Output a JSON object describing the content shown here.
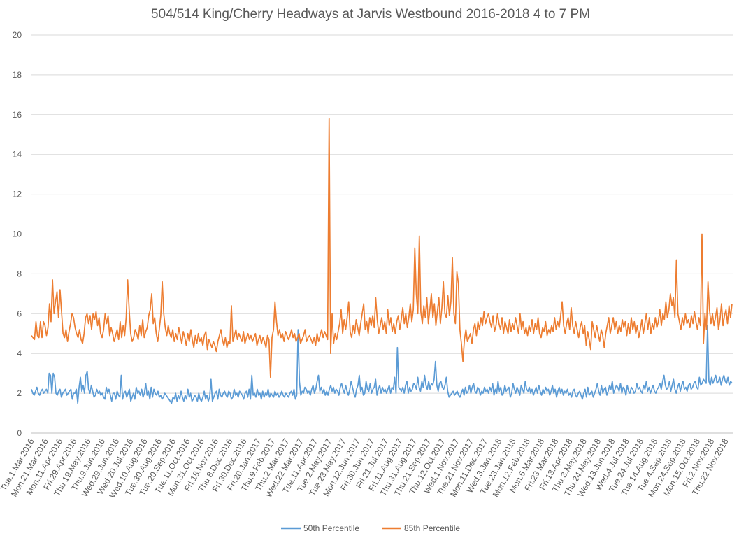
{
  "chart_data": {
    "type": "line",
    "title": "504/514 King/Cherry Headways at Jarvis Westbound 2016-2018 4 to 7 PM",
    "xlabel": "",
    "ylabel": "",
    "ylim": [
      0,
      20
    ],
    "yticks": [
      0,
      2,
      4,
      6,
      8,
      10,
      12,
      14,
      16,
      18,
      20
    ],
    "grid": true,
    "legend_position": "bottom",
    "x_tick_labels": [
      "Tue.1.Mar.2016",
      "Mon.21.Mar.2016",
      "Mon.11.Apr.2016",
      "Fri.29.Apr.2016",
      "Thu.19.May.2016",
      "Thu.9.Jun.2016",
      "Wed.29.Jun.2016",
      "Wed.20.Jul.2016",
      "Wed.10.Aug.2016",
      "Tue.30.Aug.2016",
      "Tue.20.Sep.2016",
      "Tue.11.Oct.2016",
      "Mon.31.Oct.2016",
      "Fri.18.Nov.2016",
      "Thu.8.Dec.2016",
      "Fri.30.Dec.2016",
      "Fri.20.Jan.2017",
      "Thu.9.Feb.2017",
      "Thu.2.Mar.2017",
      "Wed.22.Mar.2017",
      "Tue.11.Apr.2017",
      "Tue.2.May.2017",
      "Tue.23.May.2017",
      "Mon.12.Jun.2017",
      "Fri.30.Jun.2017",
      "Fri.21.Jul.2017",
      "Fri.11.Aug.2017",
      "Thu.31.Aug.2017",
      "Thu.21.Sep.2017",
      "Thu.12.Oct.2017",
      "Wed.1.Nov.2017",
      "Tue.21.Nov.2017",
      "Mon.11.Dec.2017",
      "Wed.3.Jan.2018",
      "Tue.23.Jan.2018",
      "Mon.12.Feb.2018",
      "Mon.5.Mar.2018",
      "Fri.23.Mar.2018",
      "Fri.13.Apr.2018",
      "Thu.3.May.2018",
      "Thu.24.May.2018",
      "Wed.13.Jun.2018",
      "Wed.4.Jul.2018",
      "Tue.24.Jul.2018",
      "Tue.14.Aug.2018",
      "Tue.4.Sep.2018",
      "Mon.24.Sep.2018",
      "Mon.15.Oct.2018",
      "Fri.2.Nov.2018",
      "Thu.22.Nov.2018"
    ],
    "series": [
      {
        "name": "50th Percentile",
        "color": "#5b9bd5",
        "values": [
          2.2,
          2.0,
          1.9,
          2.1,
          2.3,
          2.0,
          1.9,
          2.1,
          2.2,
          2.0,
          2.1,
          2.2,
          2.0,
          3.0,
          2.9,
          2.0,
          3.0,
          2.8,
          2.0,
          1.9,
          2.1,
          2.2,
          1.8,
          2.0,
          2.1,
          2.2,
          1.9,
          2.0,
          2.1,
          2.2,
          1.7,
          2.0,
          2.0,
          2.2,
          1.5,
          2.3,
          2.8,
          2.1,
          2.4,
          2.0,
          2.9,
          3.1,
          2.2,
          2.0,
          2.4,
          2.1,
          1.8,
          1.9,
          2.2,
          2.0,
          2.1,
          1.9,
          2.0,
          1.8,
          1.7,
          2.3,
          2.0,
          2.2,
          1.9,
          1.6,
          2.0,
          2.0,
          1.7,
          2.1,
          1.9,
          1.8,
          2.9,
          1.7,
          2.0,
          2.1,
          1.8,
          2.0,
          2.2,
          1.6,
          1.8,
          2.0,
          1.7,
          2.3,
          2.0,
          2.1,
          1.9,
          2.2,
          1.8,
          2.0,
          2.5,
          1.9,
          2.1,
          1.7,
          2.3,
          1.8,
          2.2,
          2.0,
          1.9,
          2.1,
          1.8,
          1.9,
          1.7,
          1.8,
          2.0,
          1.9,
          1.8,
          1.7,
          1.6,
          1.5,
          1.8,
          1.7,
          2.0,
          1.6,
          1.9,
          1.7,
          2.1,
          1.8,
          1.6,
          1.9,
          1.7,
          2.2,
          1.8,
          2.0,
          1.6,
          1.7,
          1.9,
          1.8,
          1.6,
          2.0,
          1.7,
          1.6,
          1.8,
          2.1,
          1.7,
          1.9,
          1.6,
          1.8,
          2.7,
          1.6,
          1.8,
          2.0,
          2.1,
          1.7,
          2.2,
          1.9,
          1.8,
          2.0,
          2.1,
          1.9,
          1.8,
          2.1,
          2.0,
          1.7,
          1.8,
          2.2,
          1.9,
          2.0,
          1.8,
          2.1,
          2.0,
          1.9,
          1.7,
          2.0,
          2.1,
          1.8,
          2.2,
          1.7,
          2.9,
          1.9,
          2.0,
          1.8,
          2.2,
          1.9,
          2.0,
          1.7,
          2.1,
          1.8,
          2.0,
          1.9,
          2.2,
          1.8,
          2.0,
          1.9,
          1.8,
          2.1,
          1.9,
          2.0,
          1.8,
          1.9,
          2.1,
          1.9,
          1.8,
          2.0,
          1.9,
          1.8,
          2.0,
          2.1,
          1.9,
          2.2,
          1.7,
          1.9,
          5.2,
          2.6,
          1.9,
          2.1,
          2.0,
          2.3,
          2.2,
          2.0,
          2.1,
          1.9,
          2.2,
          2.4,
          2.0,
          2.2,
          2.6,
          2.9,
          2.1,
          2.3,
          2.0,
          2.2,
          1.9,
          2.1,
          1.9,
          2.2,
          2.4,
          2.1,
          2.3,
          2.0,
          2.2,
          2.1,
          1.9,
          2.3,
          2.5,
          2.2,
          2.0,
          2.4,
          2.1,
          1.9,
          2.2,
          2.6,
          2.3,
          2.0,
          1.8,
          2.2,
          2.4,
          2.9,
          2.1,
          2.3,
          1.9,
          2.0,
          2.6,
          2.2,
          2.1,
          2.5,
          2.0,
          2.2,
          2.3,
          2.7,
          1.9,
          2.2,
          2.4,
          2.0,
          2.3,
          2.1,
          2.2,
          2.0,
          2.2,
          2.4,
          2.0,
          2.3,
          2.2,
          2.8,
          2.0,
          4.3,
          2.3,
          2.2,
          2.1,
          2.3,
          2.0,
          2.4,
          2.6,
          2.0,
          2.3,
          2.1,
          2.2,
          2.5,
          2.4,
          2.2,
          2.8,
          2.3,
          2.1,
          2.6,
          2.3,
          2.9,
          2.4,
          2.2,
          2.6,
          2.2,
          2.5,
          2.4,
          2.7,
          3.6,
          2.4,
          2.1,
          2.5,
          2.6,
          2.3,
          2.2,
          2.4,
          2.8,
          2.1,
          1.8,
          1.9,
          2.0,
          2.1,
          1.9,
          2.0,
          2.1,
          1.9,
          1.8,
          2.0,
          2.2,
          1.9,
          2.3,
          2.0,
          2.1,
          2.4,
          2.0,
          2.3,
          2.5,
          2.1,
          2.0,
          2.3,
          2.2,
          1.9,
          2.1,
          2.0,
          2.3,
          2.1,
          2.2,
          2.0,
          2.3,
          2.1,
          2.5,
          1.9,
          2.2,
          2.0,
          2.6,
          2.1,
          2.3,
          1.9,
          2.0,
          2.4,
          2.1,
          2.2,
          2.3,
          1.8,
          2.0,
          2.5,
          2.2,
          2.0,
          2.3,
          2.1,
          1.9,
          2.4,
          2.2,
          2.0,
          2.6,
          2.2,
          2.1,
          2.3,
          2.0,
          2.2,
          1.9,
          2.1,
          2.3,
          2.0,
          2.4,
          2.1,
          1.9,
          2.2,
          2.0,
          2.3,
          2.1,
          2.2,
          1.9,
          2.1,
          2.4,
          2.0,
          2.2,
          1.8,
          2.1,
          2.3,
          2.0,
          2.2,
          1.9,
          2.1,
          2.0,
          2.2,
          1.9,
          2.0,
          1.8,
          2.1,
          2.2,
          1.9,
          1.8,
          2.0,
          2.1,
          1.9,
          1.7,
          2.0,
          2.2,
          1.8,
          2.3,
          1.9,
          2.0,
          2.1,
          1.8,
          2.0,
          2.2,
          2.5,
          2.1,
          1.9,
          2.4,
          2.0,
          2.2,
          2.3,
          1.9,
          2.1,
          2.4,
          2.2,
          2.6,
          2.0,
          2.2,
          2.4,
          2.3,
          2.1,
          2.5,
          2.0,
          2.3,
          2.2,
          1.9,
          2.4,
          2.1,
          2.0,
          2.3,
          2.2,
          2.0,
          2.1,
          2.5,
          2.2,
          2.3,
          2.1,
          2.0,
          2.4,
          2.2,
          2.6,
          2.1,
          2.3,
          2.0,
          2.2,
          2.4,
          2.1,
          2.0,
          2.2,
          2.3,
          2.5,
          2.2,
          2.6,
          2.9,
          2.4,
          2.2,
          2.3,
          2.6,
          2.1,
          2.4,
          2.7,
          2.2,
          2.0,
          2.3,
          2.5,
          2.1,
          2.4,
          2.6,
          2.2,
          2.3,
          2.1,
          2.4,
          2.5,
          2.2,
          2.3,
          2.5,
          2.6,
          2.3,
          2.2,
          2.8,
          2.4,
          2.5,
          2.7,
          2.6,
          2.5,
          5.4,
          2.6,
          2.4,
          2.8,
          2.5,
          2.7,
          2.9,
          2.5,
          2.6,
          2.8,
          2.4,
          2.7,
          2.9,
          2.6,
          2.5,
          2.8,
          2.4,
          2.6,
          2.5
        ]
      },
      {
        "name": "85th Percentile",
        "color": "#ed7d31",
        "values": [
          4.9,
          4.8,
          4.7,
          5.6,
          4.9,
          4.8,
          5.6,
          4.8,
          5.6,
          5.4,
          4.9,
          5.3,
          6.5,
          5.6,
          7.7,
          6.0,
          6.6,
          7.1,
          5.8,
          7.2,
          6.1,
          5.0,
          4.8,
          5.2,
          4.6,
          5.1,
          5.5,
          6.0,
          5.8,
          5.3,
          5.0,
          4.8,
          5.2,
          4.7,
          4.5,
          5.0,
          5.8,
          6.0,
          5.5,
          5.9,
          5.2,
          6.0,
          5.7,
          6.1,
          5.4,
          5.8,
          5.0,
          4.8,
          5.2,
          6.0,
          5.5,
          5.9,
          4.9,
          5.3,
          5.0,
          4.6,
          4.9,
          5.2,
          4.7,
          5.6,
          4.8,
          5.4,
          4.9,
          5.8,
          7.7,
          6.2,
          5.0,
          4.6,
          4.8,
          5.2,
          5.0,
          4.7,
          5.4,
          4.9,
          5.7,
          4.8,
          5.1,
          5.3,
          5.9,
          6.2,
          7.0,
          5.5,
          5.8,
          5.0,
          4.6,
          5.2,
          5.9,
          7.6,
          6.0,
          5.3,
          4.9,
          5.4,
          5.0,
          4.8,
          5.2,
          4.6,
          5.0,
          4.7,
          5.3,
          4.9,
          4.5,
          5.1,
          4.8,
          4.4,
          5.0,
          4.6,
          5.2,
          4.7,
          4.3,
          4.9,
          4.5,
          5.0,
          4.6,
          4.8,
          4.4,
          4.9,
          5.1,
          4.2,
          4.7,
          4.5,
          4.3,
          4.6,
          4.4,
          4.1,
          4.6,
          4.9,
          5.2,
          4.7,
          4.4,
          4.8,
          4.3,
          4.6,
          4.5,
          6.4,
          4.6,
          4.9,
          5.2,
          4.7,
          5.0,
          4.8,
          4.6,
          5.1,
          4.5,
          4.8,
          5.0,
          4.7,
          4.9,
          4.6,
          4.8,
          5.0,
          4.4,
          4.7,
          4.9,
          4.5,
          4.8,
          4.6,
          4.3,
          4.9,
          4.7,
          2.8,
          4.8,
          5.2,
          6.6,
          5.6,
          4.9,
          5.2,
          4.8,
          5.0,
          4.6,
          5.1,
          4.9,
          4.7,
          4.9,
          5.2,
          4.8,
          5.0,
          4.6,
          4.8,
          5.0,
          4.5,
          4.7,
          4.9,
          5.2,
          4.6,
          4.8,
          4.9,
          4.7,
          4.5,
          4.8,
          4.4,
          5.0,
          4.6,
          4.9,
          5.2,
          4.8,
          5.1,
          4.9,
          4.7,
          15.8,
          4.0,
          6.0,
          4.5,
          5.0,
          4.7,
          5.1,
          5.5,
          6.2,
          5.0,
          5.7,
          5.2,
          5.8,
          6.6,
          5.1,
          4.8,
          5.4,
          5.0,
          5.7,
          5.3,
          4.9,
          5.5,
          6.0,
          6.5,
          5.2,
          5.6,
          5.0,
          5.8,
          5.4,
          5.9,
          5.3,
          6.8,
          5.7,
          5.0,
          5.4,
          5.8,
          5.2,
          5.6,
          5.0,
          6.2,
          5.4,
          5.8,
          5.1,
          5.5,
          5.0,
          5.6,
          5.9,
          5.2,
          5.7,
          6.3,
          5.5,
          6.0,
          5.3,
          5.8,
          6.5,
          5.6,
          6.2,
          9.3,
          7.0,
          6.0,
          9.9,
          6.1,
          5.5,
          6.4,
          5.8,
          6.8,
          5.5,
          6.2,
          7.0,
          5.8,
          6.5,
          5.4,
          6.1,
          6.8,
          5.5,
          6.3,
          7.6,
          6.0,
          5.8,
          6.9,
          5.9,
          6.6,
          8.8,
          6.0,
          5.5,
          8.1,
          7.5,
          5.2,
          4.5,
          3.6,
          4.7,
          5.2,
          4.6,
          4.8,
          5.0,
          4.5,
          5.2,
          5.5,
          4.9,
          5.6,
          5.2,
          5.8,
          5.4,
          6.1,
          5.5,
          5.8,
          6.0,
          5.6,
          5.3,
          5.9,
          5.1,
          5.4,
          6.0,
          5.5,
          5.2,
          5.8,
          5.0,
          5.6,
          5.3,
          5.0,
          5.7,
          5.1,
          5.5,
          5.2,
          5.8,
          5.4,
          5.0,
          6.0,
          5.2,
          5.6,
          5.0,
          5.3,
          4.9,
          5.4,
          5.1,
          5.7,
          5.0,
          5.5,
          5.2,
          5.8,
          5.0,
          4.8,
          5.3,
          5.1,
          5.6,
          4.9,
          5.2,
          5.0,
          5.4,
          5.1,
          5.8,
          5.2,
          5.6,
          5.3,
          5.9,
          6.6,
          5.4,
          5.0,
          5.5,
          5.8,
          5.2,
          6.3,
          5.4,
          5.0,
          5.6,
          5.2,
          4.8,
          5.3,
          5.6,
          5.0,
          5.4,
          4.4,
          5.1,
          4.7,
          4.2,
          5.6,
          5.2,
          4.8,
          5.4,
          5.0,
          4.6,
          5.2,
          4.9,
          4.3,
          5.0,
          5.4,
          5.8,
          5.0,
          5.4,
          5.8,
          5.2,
          5.6,
          5.0,
          5.4,
          5.1,
          5.7,
          5.3,
          5.6,
          4.9,
          5.5,
          5.0,
          5.8,
          5.2,
          5.6,
          5.0,
          5.4,
          4.8,
          5.2,
          5.7,
          5.0,
          5.5,
          6.0,
          5.2,
          5.8,
          5.0,
          5.5,
          5.2,
          5.8,
          5.3,
          5.6,
          6.2,
          5.4,
          6.0,
          5.7,
          6.6,
          5.8,
          6.2,
          7.0,
          6.4,
          6.8,
          5.8,
          8.7,
          6.0,
          5.6,
          5.2,
          5.8,
          5.4,
          6.0,
          5.5,
          5.7,
          5.3,
          5.9,
          5.5,
          6.1,
          5.6,
          5.2,
          5.8,
          5.4,
          10.0,
          4.5,
          6.0,
          5.2,
          7.6,
          6.2,
          5.5,
          6.0,
          5.4,
          5.8,
          6.3,
          5.2,
          5.7,
          6.5,
          5.4,
          5.9,
          6.2,
          5.5,
          6.4,
          5.8,
          6.5
        ]
      }
    ]
  }
}
